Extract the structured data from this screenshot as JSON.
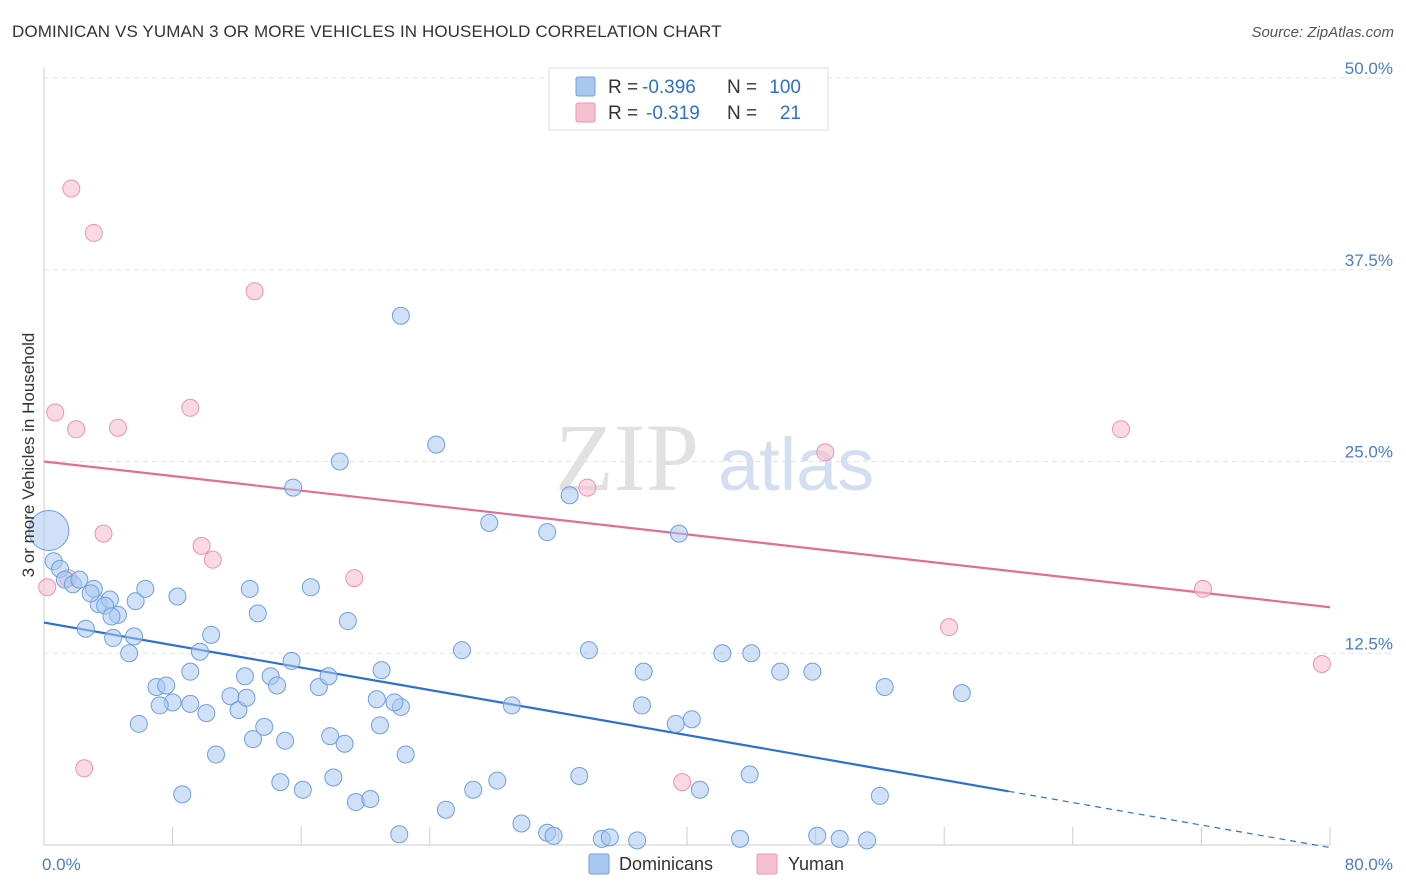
{
  "title": "DOMINICAN VS YUMAN 3 OR MORE VEHICLES IN HOUSEHOLD CORRELATION CHART",
  "source": "Source: ZipAtlas.com",
  "watermark": {
    "zip": "ZIP",
    "atlas": "atlas"
  },
  "legend": {
    "rows": [
      {
        "r_label": "R = ",
        "r_value": "-0.396",
        "n_label": "N = ",
        "n_value": "100"
      },
      {
        "r_label": "R = ",
        "r_value": "-0.319",
        "n_label": "N = ",
        "n_value": "21"
      }
    ]
  },
  "bottom_legend": [
    "Dominicans",
    "Yuman"
  ],
  "chart_data": {
    "type": "scatter",
    "xlabel": "",
    "ylabel": "3 or more Vehicles in Household",
    "xlim": [
      0,
      80
    ],
    "ylim": [
      0,
      50
    ],
    "x_tick_labels": [
      {
        "value": 0,
        "label": "0.0%"
      },
      {
        "value": 80,
        "label": "80.0%"
      }
    ],
    "y_tick_labels": [
      {
        "value": 12.5,
        "label": "12.5%"
      },
      {
        "value": 25,
        "label": "25.0%"
      },
      {
        "value": 37.5,
        "label": "37.5%"
      },
      {
        "value": 50,
        "label": "50.0%"
      }
    ],
    "grid": true,
    "legend_position": "top-center",
    "colors": {
      "dominicans_fill": "#a9c8f0",
      "dominicans_stroke": "#6f9fdf",
      "dominicans_line": "#2e6fd0",
      "yuman_fill": "#f7c0d0",
      "yuman_stroke": "#ec94ae",
      "yuman_line": "#e36d96"
    },
    "series": [
      {
        "name": "Dominicans",
        "trend": {
          "x0": 0,
          "y0": 14.5,
          "x1": 60,
          "y1": 3.5,
          "dash_to_x": 80
        },
        "points": [
          [
            0.3,
            20.5,
            "L"
          ],
          [
            0.6,
            18.5
          ],
          [
            1.0,
            18.0
          ],
          [
            1.3,
            17.3
          ],
          [
            1.8,
            17.0
          ],
          [
            2.2,
            17.3
          ],
          [
            3.1,
            16.7
          ],
          [
            3.4,
            15.7
          ],
          [
            2.6,
            14.1
          ],
          [
            4.1,
            16.0
          ],
          [
            4.6,
            15.0
          ],
          [
            2.9,
            16.4
          ],
          [
            3.8,
            15.6
          ],
          [
            5.7,
            15.9
          ],
          [
            6.3,
            16.7
          ],
          [
            4.2,
            14.9
          ],
          [
            5.6,
            13.6
          ],
          [
            5.3,
            12.5
          ],
          [
            4.3,
            13.5
          ],
          [
            8.3,
            16.2
          ],
          [
            10.4,
            13.7
          ],
          [
            9.7,
            12.6
          ],
          [
            12.8,
            16.7
          ],
          [
            13.3,
            15.1
          ],
          [
            16.6,
            16.8
          ],
          [
            18.9,
            14.6
          ],
          [
            7.0,
            10.3
          ],
          [
            7.6,
            10.4
          ],
          [
            8.0,
            9.3
          ],
          [
            9.1,
            11.3
          ],
          [
            9.1,
            9.2
          ],
          [
            10.1,
            8.6
          ],
          [
            11.6,
            9.7
          ],
          [
            12.5,
            11.0
          ],
          [
            12.1,
            8.8
          ],
          [
            12.6,
            9.6
          ],
          [
            14.1,
            11.0
          ],
          [
            14.5,
            10.4
          ],
          [
            15.4,
            12.0
          ],
          [
            17.1,
            10.3
          ],
          [
            17.7,
            11.0
          ],
          [
            21.0,
            11.4
          ],
          [
            20.7,
            9.5
          ],
          [
            20.9,
            7.8
          ],
          [
            13.7,
            7.7
          ],
          [
            13.0,
            6.9
          ],
          [
            15.0,
            6.8
          ],
          [
            17.8,
            7.1
          ],
          [
            18.7,
            6.6
          ],
          [
            10.7,
            5.9
          ],
          [
            22.5,
            5.9
          ],
          [
            5.9,
            7.9
          ],
          [
            8.6,
            3.3
          ],
          [
            14.7,
            4.1
          ],
          [
            16.1,
            3.6
          ],
          [
            18.0,
            4.4
          ],
          [
            19.4,
            2.8
          ],
          [
            20.3,
            3.0
          ],
          [
            22.1,
            0.7
          ],
          [
            25.0,
            2.3
          ],
          [
            26.7,
            3.6
          ],
          [
            28.2,
            4.2
          ],
          [
            29.7,
            1.4
          ],
          [
            31.3,
            0.8
          ],
          [
            31.7,
            0.6
          ],
          [
            33.3,
            4.5
          ],
          [
            34.7,
            0.4
          ],
          [
            35.2,
            0.5
          ],
          [
            36.9,
            0.3
          ],
          [
            37.3,
            11.3
          ],
          [
            29.1,
            9.1
          ],
          [
            33.9,
            12.7
          ],
          [
            37.2,
            9.1
          ],
          [
            39.3,
            7.9
          ],
          [
            40.3,
            8.2
          ],
          [
            42.2,
            12.5
          ],
          [
            44.0,
            12.5
          ],
          [
            40.8,
            3.6
          ],
          [
            43.9,
            4.6
          ],
          [
            43.3,
            0.4
          ],
          [
            45.8,
            11.3
          ],
          [
            47.8,
            11.3
          ],
          [
            48.1,
            0.6
          ],
          [
            49.5,
            0.4
          ],
          [
            51.2,
            0.3
          ],
          [
            52.0,
            3.2
          ],
          [
            52.3,
            10.3
          ],
          [
            57.1,
            9.9
          ],
          [
            22.2,
            34.5
          ],
          [
            24.4,
            26.1
          ],
          [
            18.4,
            25.0
          ],
          [
            15.5,
            23.3
          ],
          [
            27.7,
            21.0
          ],
          [
            31.3,
            20.4
          ],
          [
            32.7,
            22.8
          ],
          [
            39.5,
            20.3
          ],
          [
            26.0,
            12.7
          ],
          [
            7.2,
            9.1
          ],
          [
            22.2,
            9.0
          ],
          [
            21.8,
            9.3
          ]
        ]
      },
      {
        "name": "Yuman",
        "trend": {
          "x0": 0,
          "y0": 25.0,
          "x1": 80,
          "y1": 15.5
        },
        "points": [
          [
            0.2,
            16.8
          ],
          [
            0.7,
            28.2
          ],
          [
            1.5,
            17.4
          ],
          [
            2.0,
            27.1
          ],
          [
            3.7,
            20.3
          ],
          [
            4.6,
            27.2
          ],
          [
            1.7,
            42.8
          ],
          [
            3.1,
            39.9
          ],
          [
            9.1,
            28.5
          ],
          [
            13.1,
            36.1
          ],
          [
            9.8,
            19.5
          ],
          [
            10.5,
            18.6
          ],
          [
            19.3,
            17.4
          ],
          [
            33.8,
            23.3
          ],
          [
            48.6,
            25.6
          ],
          [
            56.3,
            14.2
          ],
          [
            67.0,
            27.1
          ],
          [
            72.1,
            16.7
          ],
          [
            79.5,
            11.8
          ],
          [
            39.7,
            4.1
          ],
          [
            2.5,
            5.0
          ]
        ]
      }
    ]
  }
}
